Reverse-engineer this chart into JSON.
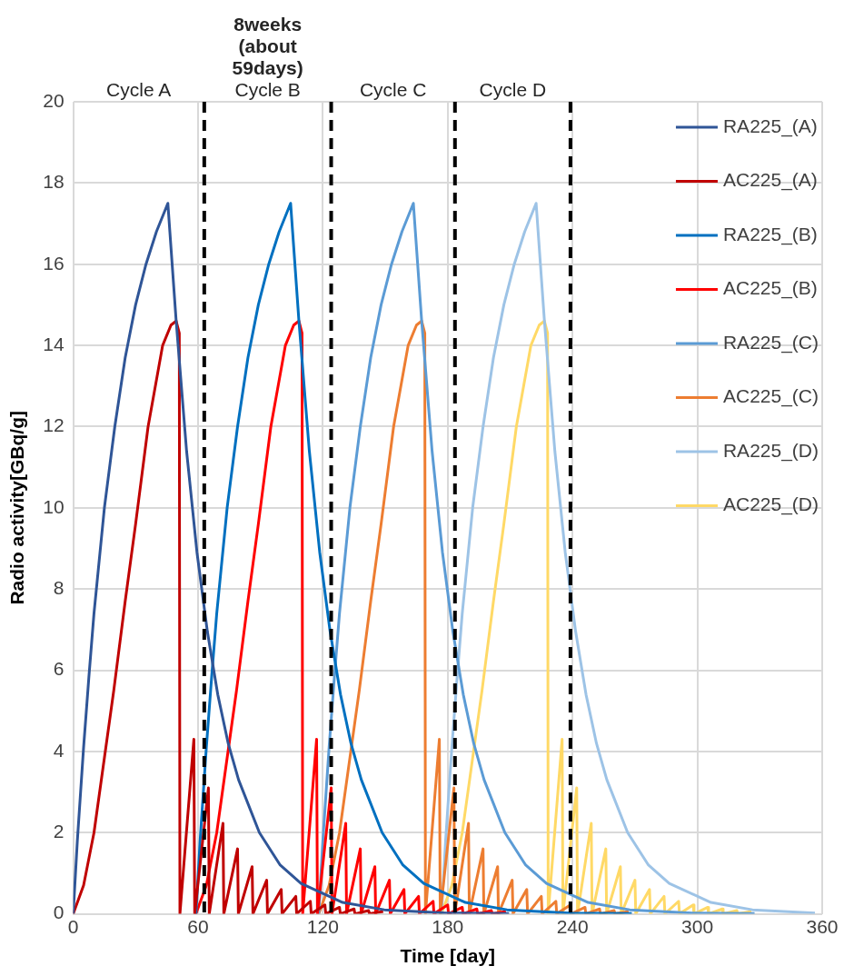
{
  "chart_data": {
    "type": "line",
    "xlabel": "Time [day]",
    "ylabel": "Radio activity[GBq/g]",
    "xlim": [
      0,
      360
    ],
    "xticks": [
      0,
      60,
      120,
      180,
      240,
      300,
      360
    ],
    "ylim": [
      0,
      20
    ],
    "yticks": [
      0,
      2,
      4,
      6,
      8,
      10,
      12,
      14,
      16,
      18,
      20
    ],
    "grid": true,
    "legend": "top right",
    "marker": "none",
    "line_style": "solid",
    "annotations": [
      "Cycle A",
      "Cycle B",
      "Cycle C",
      "Cycle D",
      "8weeks (about 59days)"
    ],
    "ref_lines": [
      {
        "axis": "x",
        "value": 63,
        "color": "#000000",
        "line_style": "dashed"
      },
      {
        "axis": "x",
        "value": 124,
        "color": "#000000",
        "line_style": "dashed"
      },
      {
        "axis": "x",
        "value": 183.5,
        "color": "#000000",
        "line_style": "dashed"
      },
      {
        "axis": "x",
        "value": 239,
        "color": "#000000",
        "line_style": "dashed"
      }
    ],
    "series": [
      {
        "name": "RA225_(A)",
        "color": "#2f5597",
        "x": [
          0,
          2,
          5,
          7.5,
          10,
          15,
          20,
          25,
          30,
          35,
          40,
          45.5,
          49.5,
          54.5,
          59.5,
          64.5,
          69.5,
          74.5,
          79.5,
          89.5,
          99.5,
          109.5,
          129.5,
          149.5,
          179.5,
          209.5
        ],
        "values": [
          0,
          1.8,
          4.1,
          5.8,
          7.4,
          10.0,
          12.0,
          13.7,
          15.0,
          16.0,
          16.8,
          17.5,
          14.6,
          11.4,
          8.9,
          6.95,
          5.4,
          4.2,
          3.3,
          2.0,
          1.2,
          0.75,
          0.28,
          0.1,
          0.02,
          0.01
        ]
      },
      {
        "name": "AC225_(A)",
        "color": "#c00000",
        "x": [
          0,
          5,
          10,
          19.5,
          25,
          30,
          36,
          43,
          47,
          49.5,
          51,
          51.3,
          58,
          58.4,
          65,
          65.4,
          72,
          72.4,
          79,
          79.4,
          86,
          86.4,
          93,
          93.4,
          100,
          100.4,
          107,
          107.4,
          114,
          114.4,
          121,
          121.4,
          128,
          128.4,
          135,
          135.4,
          142,
          142.4,
          149
        ],
        "values": [
          0,
          0.7,
          2.0,
          5.5,
          7.7,
          9.6,
          12.0,
          14.0,
          14.5,
          14.6,
          14.3,
          0,
          4.3,
          0,
          3.1,
          0,
          2.23,
          0,
          1.6,
          0,
          1.16,
          0,
          0.83,
          0,
          0.6,
          0,
          0.43,
          0,
          0.31,
          0,
          0.22,
          0,
          0.16,
          0,
          0.12,
          0,
          0.08,
          0,
          0.06
        ]
      },
      {
        "name": "RA225_(B)",
        "color": "#0070c0",
        "x": [
          59,
          61,
          64,
          66.5,
          69,
          74,
          79,
          84,
          89,
          94,
          99,
          104.5,
          108.5,
          113.5,
          118.5,
          123.5,
          128.5,
          133.5,
          138.5,
          148.5,
          158.5,
          168.5,
          188.5,
          208.5,
          238.5,
          268.5
        ],
        "values": [
          0,
          1.8,
          4.1,
          5.8,
          7.4,
          10.0,
          12.0,
          13.7,
          15.0,
          16.0,
          16.8,
          17.5,
          14.6,
          11.4,
          8.9,
          6.95,
          5.4,
          4.2,
          3.3,
          2.0,
          1.2,
          0.75,
          0.28,
          0.1,
          0.02,
          0.01
        ]
      },
      {
        "name": "AC225_(B)",
        "color": "#ff0000",
        "x": [
          59,
          64,
          69,
          78.5,
          84,
          89,
          95,
          102,
          106,
          108.5,
          110,
          110.3,
          117,
          117.4,
          124,
          124.4,
          131,
          131.4,
          138,
          138.4,
          145,
          145.4,
          152,
          152.4,
          159,
          159.4,
          166,
          166.4,
          173,
          173.4,
          180,
          180.4,
          187,
          187.4,
          194,
          194.4,
          201,
          201.4,
          208
        ],
        "values": [
          0,
          0.7,
          2.0,
          5.5,
          7.7,
          9.6,
          12.0,
          14.0,
          14.5,
          14.6,
          14.3,
          0,
          4.3,
          0,
          3.1,
          0,
          2.23,
          0,
          1.6,
          0,
          1.16,
          0,
          0.83,
          0,
          0.6,
          0,
          0.43,
          0,
          0.31,
          0,
          0.22,
          0,
          0.16,
          0,
          0.12,
          0,
          0.08,
          0,
          0.06
        ]
      },
      {
        "name": "RA225_(C)",
        "color": "#5b9bd5",
        "x": [
          118,
          120,
          123,
          125.5,
          128,
          133,
          138,
          143,
          148,
          153,
          158,
          163.5,
          167.5,
          172.5,
          177.5,
          182.5,
          187.5,
          192.5,
          197.5,
          207.5,
          217.5,
          227.5,
          247.5,
          267.5,
          297.5,
          327.5
        ],
        "values": [
          0,
          1.8,
          4.1,
          5.8,
          7.4,
          10.0,
          12.0,
          13.7,
          15.0,
          16.0,
          16.8,
          17.5,
          14.6,
          11.4,
          8.9,
          6.95,
          5.4,
          4.2,
          3.3,
          2.0,
          1.2,
          0.75,
          0.28,
          0.1,
          0.02,
          0.01
        ]
      },
      {
        "name": "AC225_(C)",
        "color": "#ed7d31",
        "x": [
          118,
          123,
          128,
          137.5,
          143,
          148,
          154,
          161,
          165,
          167.5,
          169,
          169.3,
          176,
          176.4,
          183,
          183.4,
          190,
          190.4,
          197,
          197.4,
          204,
          204.4,
          211,
          211.4,
          218,
          218.4,
          225,
          225.4,
          232,
          232.4,
          239,
          239.4,
          246,
          246.4,
          253,
          253.4,
          260,
          260.4,
          267
        ],
        "values": [
          0,
          0.7,
          2.0,
          5.5,
          7.7,
          9.6,
          12.0,
          14.0,
          14.5,
          14.6,
          14.3,
          0,
          4.3,
          0,
          3.1,
          0,
          2.23,
          0,
          1.6,
          0,
          1.16,
          0,
          0.83,
          0,
          0.6,
          0,
          0.43,
          0,
          0.31,
          0,
          0.22,
          0,
          0.16,
          0,
          0.12,
          0,
          0.08,
          0,
          0.06
        ]
      },
      {
        "name": "RA225_(D)",
        "color": "#9dc3e6",
        "x": [
          177,
          179,
          182,
          184.5,
          187,
          192,
          197,
          202,
          207,
          212,
          217,
          222.5,
          226.5,
          231.5,
          236.5,
          241.5,
          246.5,
          251.5,
          256.5,
          266.5,
          276.5,
          286.5,
          306.5,
          326.5,
          356.5
        ],
        "values": [
          0,
          1.8,
          4.1,
          5.8,
          7.4,
          10.0,
          12.0,
          13.7,
          15.0,
          16.0,
          16.8,
          17.5,
          14.6,
          11.4,
          8.9,
          6.95,
          5.4,
          4.2,
          3.3,
          2.0,
          1.2,
          0.75,
          0.28,
          0.1,
          0.02
        ]
      },
      {
        "name": "AC225_(D)",
        "color": "#ffd966",
        "x": [
          177,
          182,
          187,
          196.5,
          202,
          207,
          213,
          220,
          224,
          226.5,
          228,
          228.3,
          235,
          235.4,
          242,
          242.4,
          249,
          249.4,
          256,
          256.4,
          263,
          263.4,
          270,
          270.4,
          277,
          277.4,
          284,
          284.4,
          291,
          291.4,
          298,
          298.4,
          305,
          305.4,
          312,
          312.4,
          319,
          319.4,
          326
        ],
        "values": [
          0,
          0.7,
          2.0,
          5.5,
          7.7,
          9.6,
          12.0,
          14.0,
          14.5,
          14.6,
          14.3,
          0,
          4.3,
          0,
          3.1,
          0,
          2.23,
          0,
          1.6,
          0,
          1.16,
          0,
          0.83,
          0,
          0.6,
          0,
          0.43,
          0,
          0.31,
          0,
          0.22,
          0,
          0.16,
          0,
          0.12,
          0,
          0.08,
          0,
          0.06
        ]
      }
    ]
  }
}
